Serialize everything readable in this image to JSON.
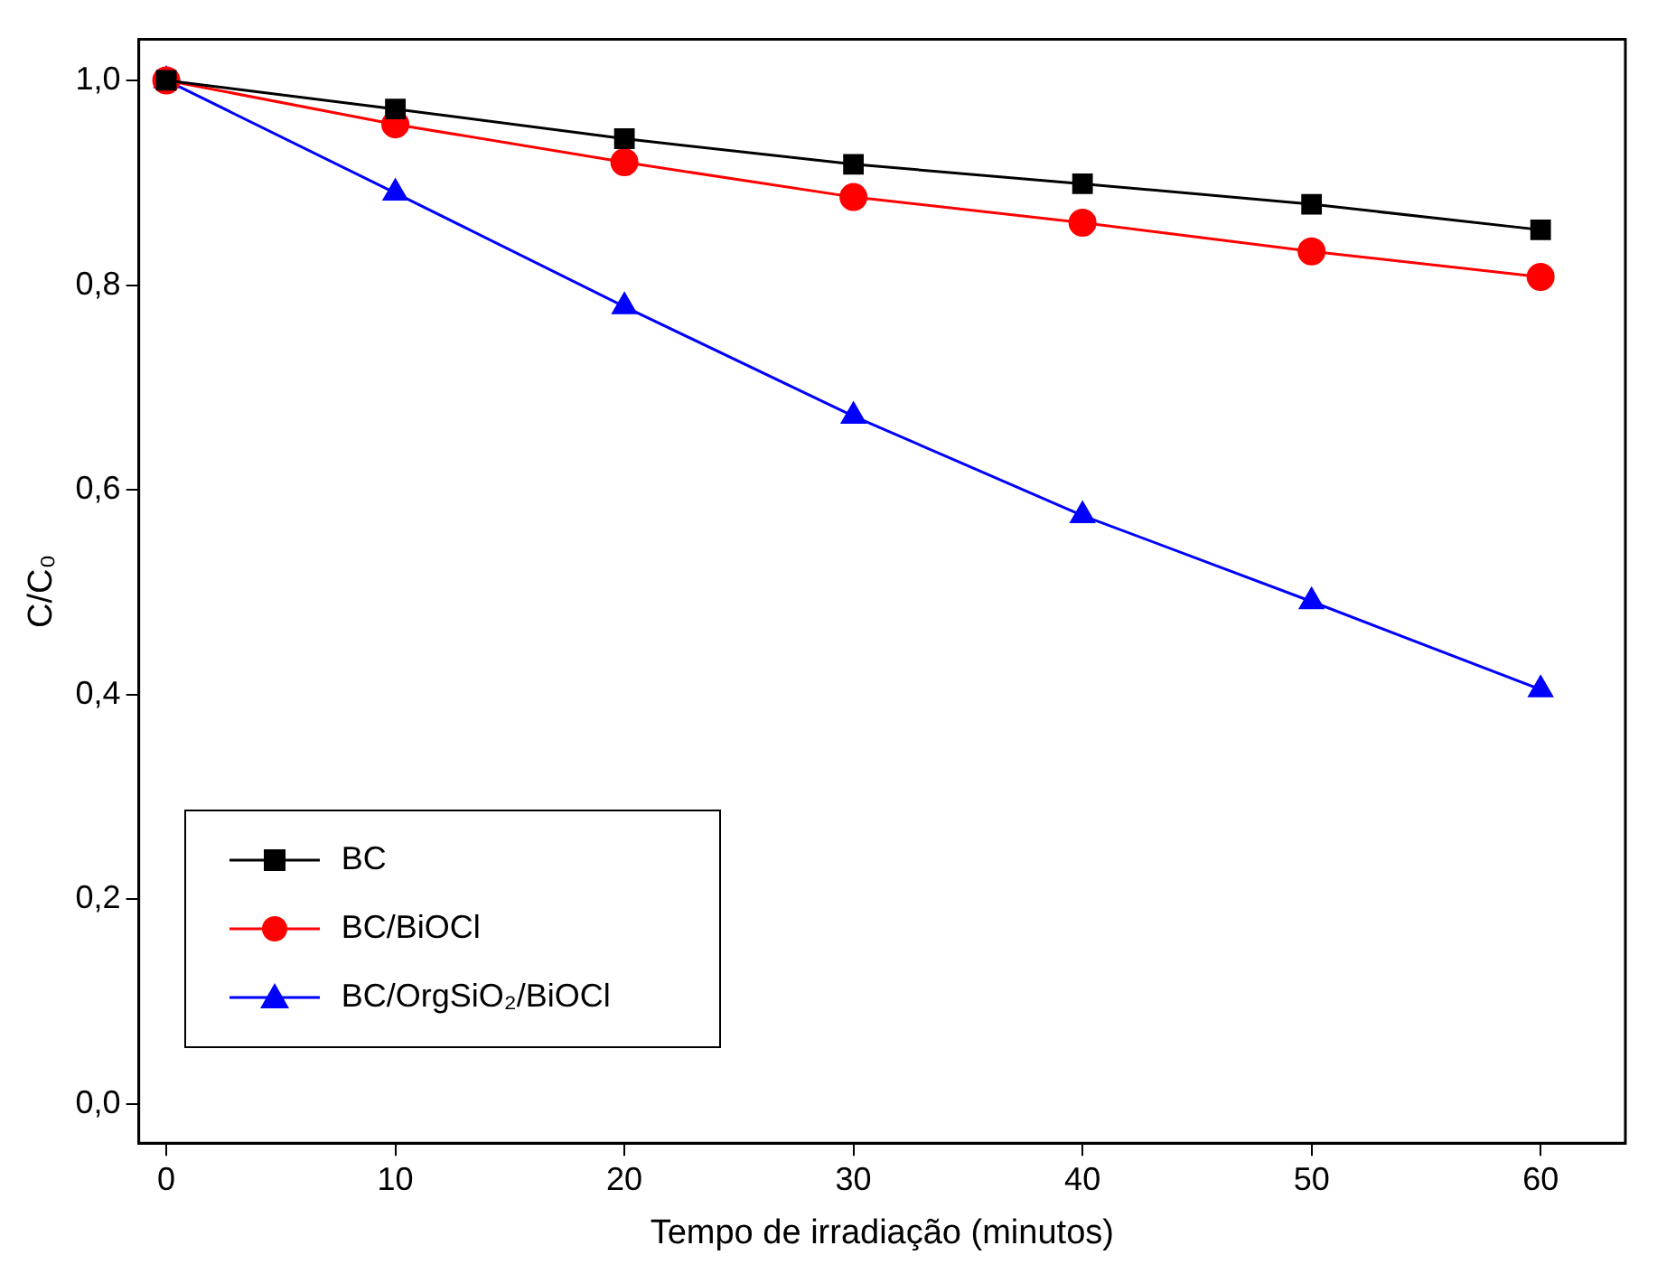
{
  "chart_data": {
    "type": "line",
    "xlabel": "Tempo de irradiação (minutos)",
    "ylabel": "C/C₀",
    "x": [
      0,
      10,
      20,
      30,
      40,
      50,
      60
    ],
    "series": [
      {
        "name": "BC",
        "color": "#000000",
        "marker": "square",
        "values": [
          1.0,
          0.972,
          0.943,
          0.918,
          0.899,
          0.879,
          0.854
        ]
      },
      {
        "name": "BC/BiOCl",
        "color": "#ff0000",
        "marker": "circle",
        "values": [
          1.0,
          0.957,
          0.92,
          0.886,
          0.861,
          0.833,
          0.808
        ]
      },
      {
        "name": "BC/OrgSiO₂/BiOCl",
        "color": "#0000ff",
        "marker": "triangle",
        "values": [
          1.0,
          0.89,
          0.779,
          0.672,
          0.575,
          0.491,
          0.405
        ]
      }
    ],
    "xlim": [
      -1.2,
      63.7
    ],
    "xticks": [
      0,
      10,
      20,
      30,
      40,
      50,
      60
    ],
    "ylim": [
      -0.038,
      1.04
    ],
    "yticks": [
      {
        "value": 0,
        "label": "0,0"
      },
      {
        "value": 0.2,
        "label": "0,2"
      },
      {
        "value": 0.4,
        "label": "0,4"
      },
      {
        "value": 0.6,
        "label": "0,6"
      },
      {
        "value": 0.8,
        "label": "0,8"
      },
      {
        "value": 1.0,
        "label": "1,0"
      }
    ],
    "grid": false,
    "legend": "bottom left",
    "line_style": "solid"
  }
}
